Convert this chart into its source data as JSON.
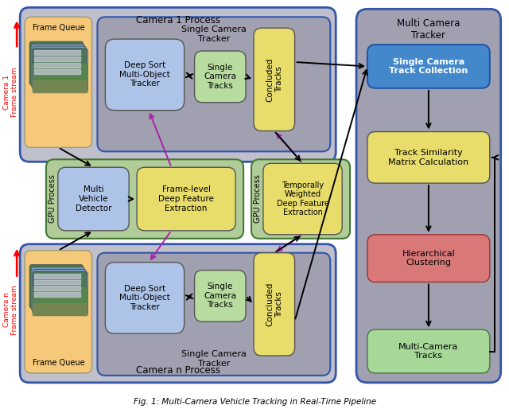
{
  "title": "Fig. 1: Multi-Camera Vehicle Tracking in Real-Time Pipeline",
  "bg_color": "#ffffff",
  "cam1_process_label": "Camera 1 Process",
  "camn_process_label": "Camera n Process",
  "gpu_process_label": "GPU Process",
  "single_cam_tracker_label1": "Single Camera\nTracker",
  "single_cam_trackerN_label": "Single Camera\nTracker",
  "multi_cam_tracker_label": "Multi Camera\nTracker",
  "frame_queue_label": "Frame Queue",
  "deep_sort_label": "Deep Sort\nMulti-Object\nTracker",
  "single_cam_tracks_label": "Single\nCamera\nTracks",
  "concluded_tracks_label": "Concluded\nTracks",
  "multi_vehicle_label": "Multi\nVehicle\nDetector",
  "frame_level_label": "Frame-level\nDeep Feature\nExtraction",
  "temporally_label": "Temporally\nWeighted\nDeep Feature\nExtraction",
  "single_cam_collection_label": "Single Camera\nTrack Collection",
  "track_similarity_label": "Track Similarity\nMatrix Calculation",
  "hierarchical_label": "Hierarchical\nClustering",
  "multi_camera_tracks_label": "Multi-Camera\nTracks",
  "camera1_stream_label": "Camera 1\nFrame stream",
  "cameran_stream_label": "Camera n\nFrame stream",
  "colors": {
    "outer_cam_bg": "#c0c0cc",
    "inner_tracker_bg": "#a0a0b0",
    "gpu_process_bg": "#b0cc98",
    "frame_queue_bg": "#f5c87a",
    "deep_sort_bg": "#adc4e8",
    "single_cam_tracks_bg": "#b8dca0",
    "concluded_tracks_bg": "#e8dc6a",
    "multi_vehicle_bg": "#adc4e8",
    "frame_level_bg": "#e8dc6a",
    "temporally_bg": "#e8dc6a",
    "multi_cam_tracker_bg": "#a0a0b0",
    "single_cam_collection_bg": "#4488cc",
    "track_similarity_bg": "#e8dc6a",
    "hierarchical_bg": "#d87878",
    "multi_camera_tracks_bg": "#a8d898",
    "border_blue": "#3355aa",
    "border_dark": "#555555",
    "border_green": "#447733"
  }
}
